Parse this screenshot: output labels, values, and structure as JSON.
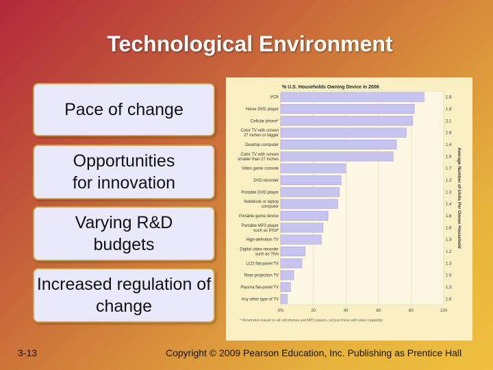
{
  "slide": {
    "title": "Technological Environment",
    "bullets": [
      "Pace of change",
      "Opportunities for innovation",
      "Varying R&D budgets",
      "Increased regulation of change"
    ],
    "page_number": "3-13",
    "copyright": "Copyright © 2009 Pearson Education, Inc. Publishing as Prentice Hall"
  },
  "chart_data": {
    "type": "bar",
    "orientation": "horizontal",
    "title": "% U.S. Households Owning Device in 2006",
    "right_axis_label": "Average Number of Units Per Owner Household",
    "footnote": "* Penetration based on all cell phones and MP3 players, not just those with video capability.",
    "xlim": [
      0,
      100
    ],
    "xticks": [
      "0%",
      "20",
      "40",
      "60",
      "80",
      "100"
    ],
    "bar_color": "#c8c4f0",
    "categories": [
      "VCR",
      "Home DVD player",
      "Cellular phone*",
      "Color TV with screen 27 inches or bigger",
      "Desktop computer",
      "Color TV with screen smaller than 27 inches",
      "Video game console",
      "DVD recorder",
      "Portable DVD player",
      "Notebook or laptop computer",
      "Portable game device",
      "Portable MP3 player such as iPod*",
      "High-definition TV",
      "Digital video recorder such as TiVo",
      "LCD flat-panel TV",
      "Rear-projection TV",
      "Plasma flat-panel TV",
      "Any other type of TV"
    ],
    "values": [
      88,
      82,
      81,
      77,
      71,
      69,
      40,
      37,
      36,
      35,
      29,
      26,
      25,
      15,
      13,
      8,
      6,
      4
    ],
    "units_per_household": [
      "1.8",
      "1.8",
      "2.1",
      "1.6",
      "1.4",
      "1.9",
      "1.7",
      "1.3",
      "1.3",
      "1.4",
      "1.8",
      "1.6",
      "1.3",
      "1.2",
      "1.3",
      "1.5",
      "1.3",
      "1.6"
    ]
  }
}
